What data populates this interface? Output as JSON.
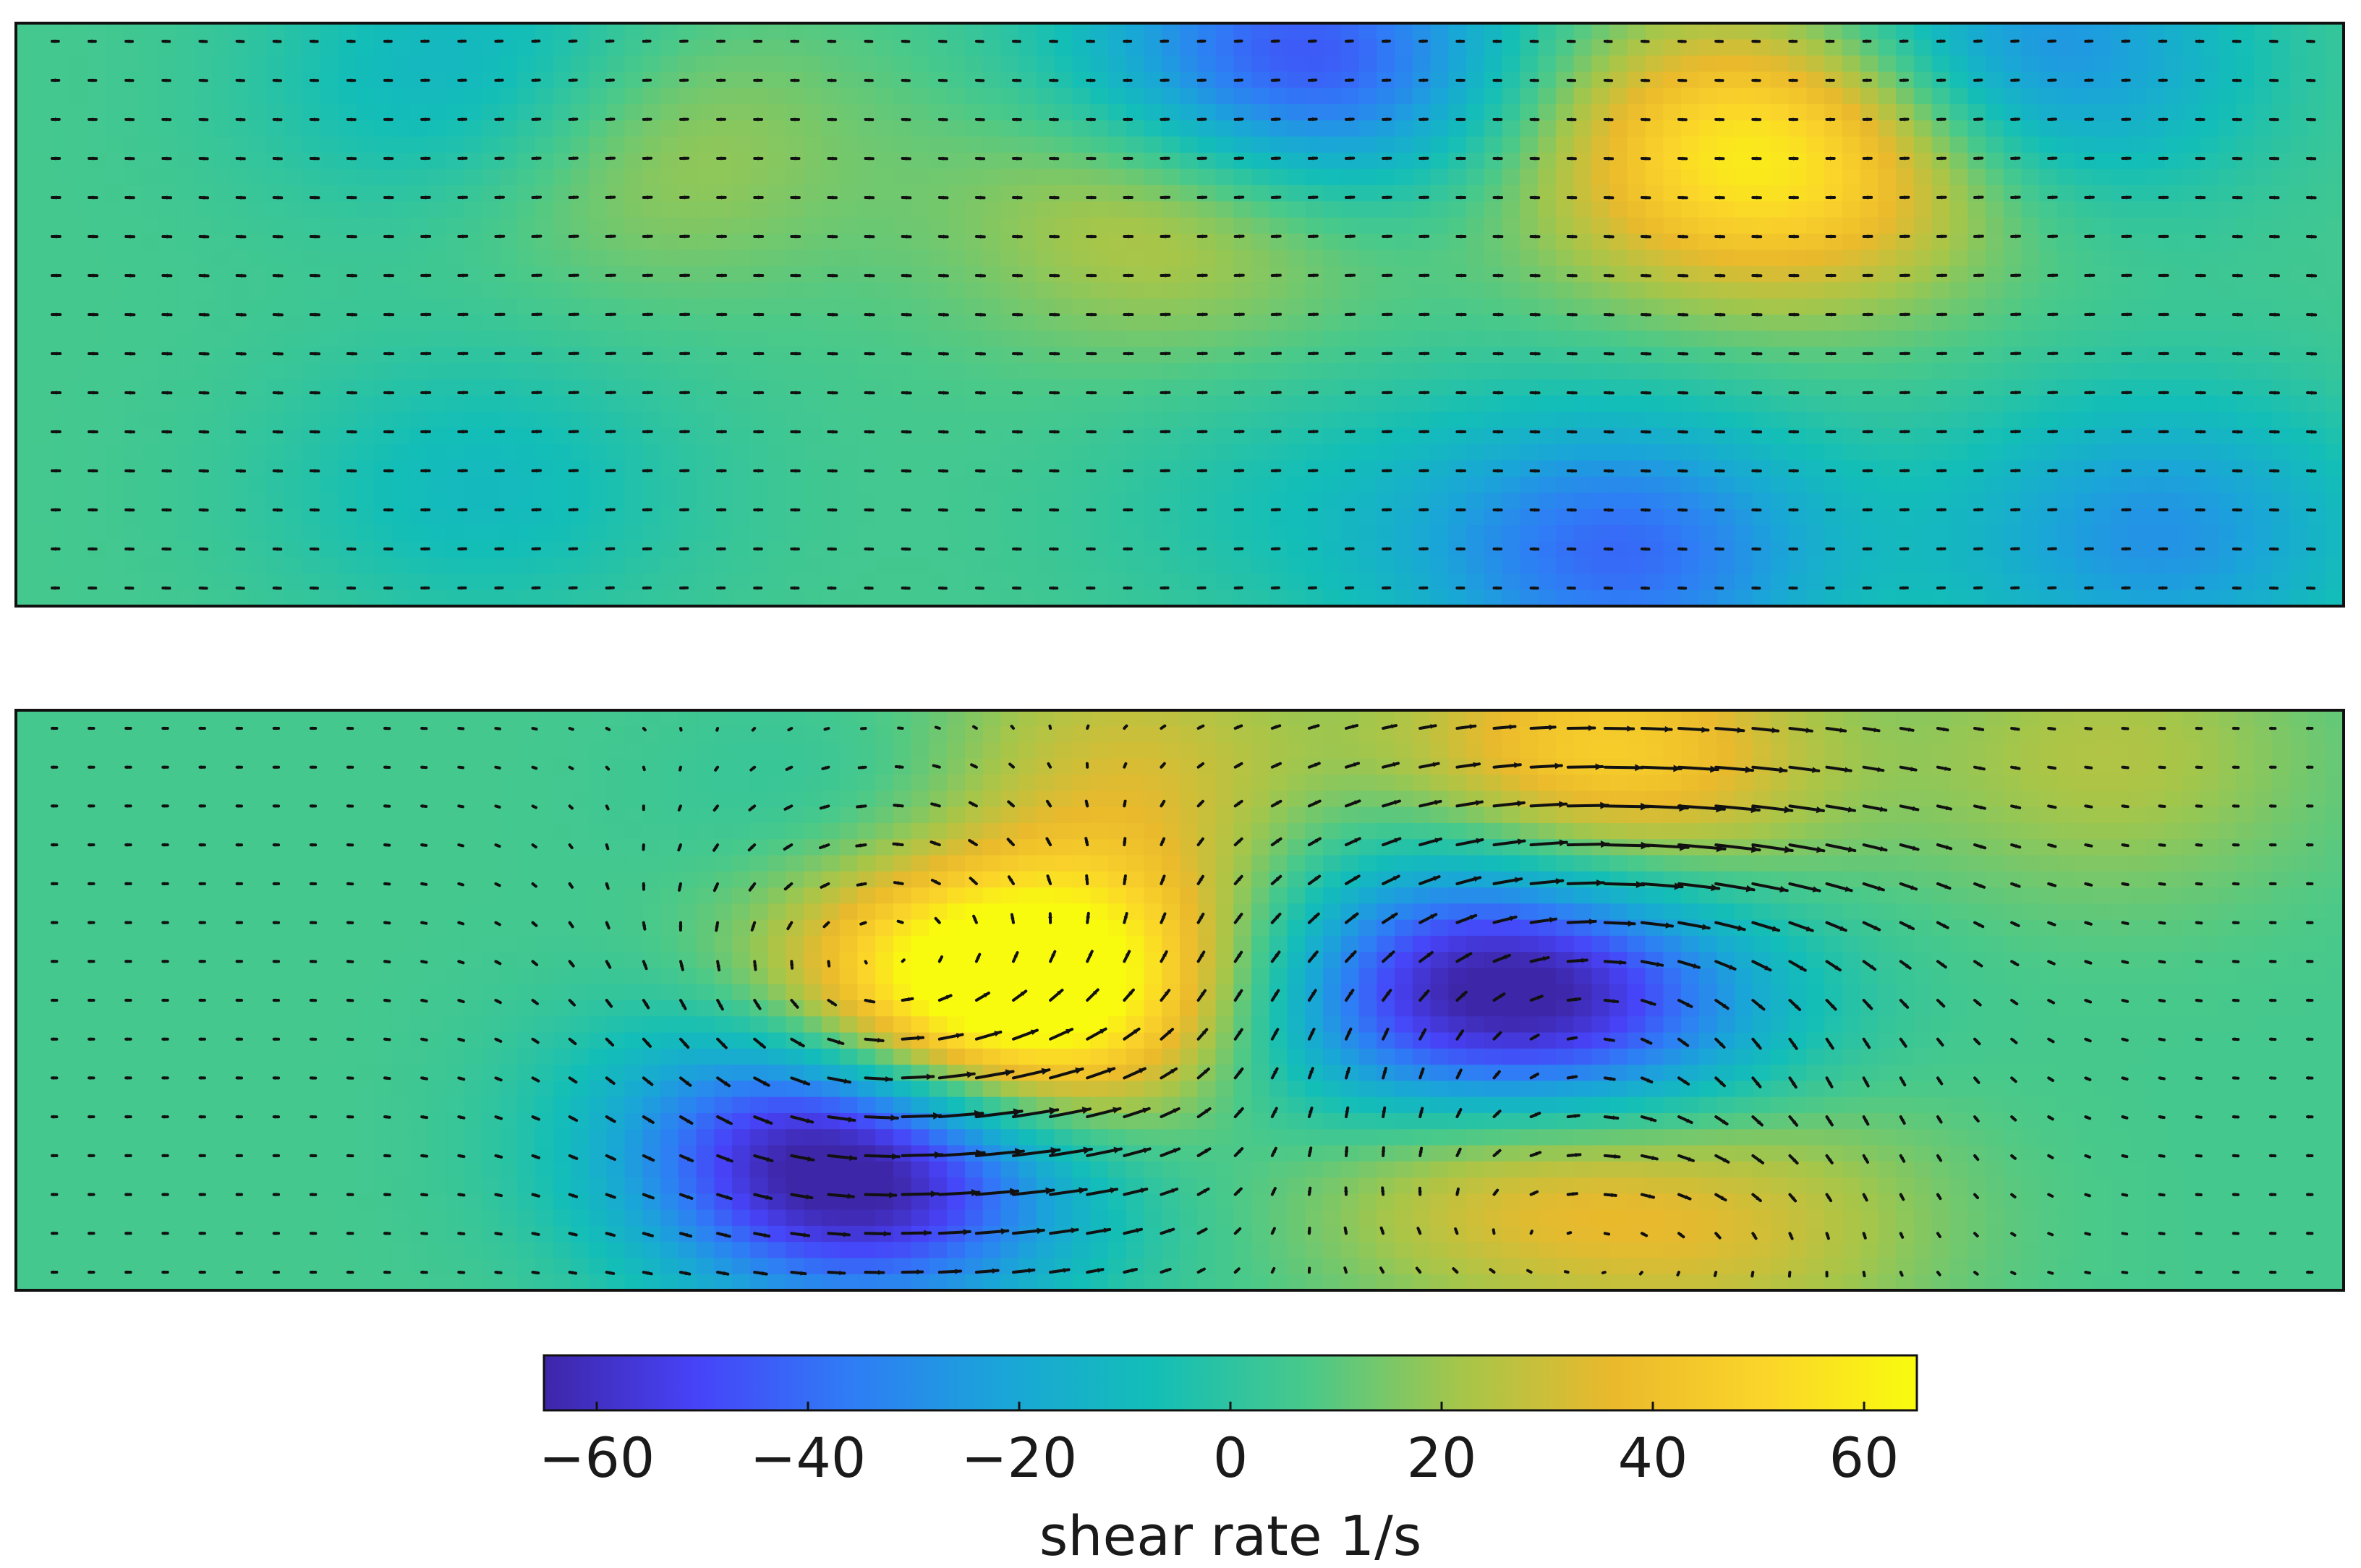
{
  "chart_data": [
    {
      "type": "heatmap",
      "panel": "top",
      "quiver": true,
      "colormap": "parula",
      "color_range": [
        -65,
        65
      ],
      "field_centers": [
        {
          "x": 0.21,
          "y": 0.11,
          "value": -30
        },
        {
          "x": 0.26,
          "y": 0.19,
          "value": 26
        },
        {
          "x": 0.5,
          "y": 0.3,
          "value": 28
        },
        {
          "x": 0.53,
          "y": 0.08,
          "value": -32
        },
        {
          "x": 0.57,
          "y": 0.08,
          "value": -30
        },
        {
          "x": 0.78,
          "y": 0.22,
          "value": 40
        },
        {
          "x": 0.72,
          "y": 0.22,
          "value": 26
        },
        {
          "x": 0.86,
          "y": 0.07,
          "value": -42
        },
        {
          "x": 0.69,
          "y": 0.91,
          "value": -46
        },
        {
          "x": 0.92,
          "y": 0.88,
          "value": -34
        },
        {
          "x": 0.2,
          "y": 0.8,
          "value": -16
        },
        {
          "x": 0.55,
          "y": 0.82,
          "value": -10
        }
      ],
      "vector_field": "near-uniform weak flow to the right"
    },
    {
      "type": "heatmap",
      "panel": "bottom",
      "quiver": true,
      "colormap": "parula",
      "color_range": [
        -65,
        65
      ],
      "field_centers": [
        {
          "x": 0.4,
          "y": 0.5,
          "value": 62
        },
        {
          "x": 0.45,
          "y": 0.46,
          "value": 44
        },
        {
          "x": 0.37,
          "y": 0.8,
          "value": -60
        },
        {
          "x": 0.34,
          "y": 0.7,
          "value": -36
        },
        {
          "x": 0.67,
          "y": 0.55,
          "value": -58
        },
        {
          "x": 0.6,
          "y": 0.55,
          "value": -38
        },
        {
          "x": 0.68,
          "y": 0.1,
          "value": 46
        },
        {
          "x": 0.64,
          "y": 0.74,
          "value": 46
        },
        {
          "x": 0.74,
          "y": 0.88,
          "value": 22
        },
        {
          "x": 0.47,
          "y": 0.1,
          "value": 26
        },
        {
          "x": 0.9,
          "y": 0.08,
          "value": 18
        },
        {
          "x": 0.39,
          "y": 0.24,
          "value": -18
        },
        {
          "x": 0.63,
          "y": 0.35,
          "value": -22
        }
      ],
      "vector_field": "two vortex structures: counter-clockwise swirl near x=0.38, clockwise swirl near x=0.68; strong rightward jets near the bottom-middle and upper-right"
    }
  ],
  "colorbar": {
    "ticks": [
      "−60",
      "−40",
      "−20",
      "0",
      "20",
      "40",
      "60"
    ],
    "tick_values": [
      -60,
      -40,
      -20,
      0,
      20,
      40,
      60
    ],
    "range": [
      -65,
      65
    ],
    "label": "shear rate 1/s",
    "colors": [
      "#3e26a8",
      "#4743f8",
      "#2f7cf6",
      "#1aa5d8",
      "#13beb7",
      "#49c98a",
      "#a5c64a",
      "#eab92c",
      "#fbd52a",
      "#f9fb0e"
    ]
  }
}
